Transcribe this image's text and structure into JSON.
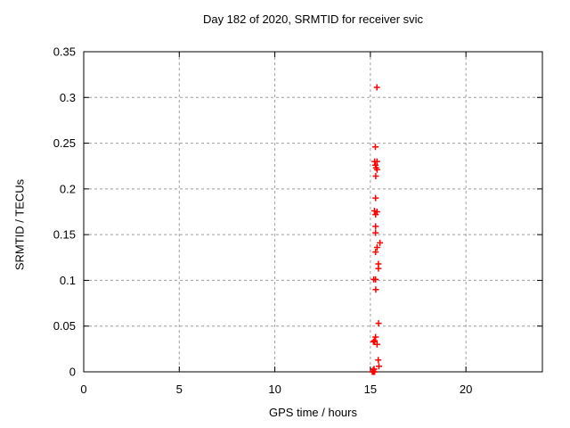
{
  "chart_data": {
    "type": "scatter",
    "title": "Day 182 of 2020, SRMTID for receiver svic",
    "xlabel": "GPS time / hours",
    "ylabel": "SRMTID / TECUs",
    "xlim": [
      0,
      24
    ],
    "ylim": [
      0,
      0.35
    ],
    "xticks": [
      {
        "value": 0,
        "label": "0"
      },
      {
        "value": 5,
        "label": "5"
      },
      {
        "value": 10,
        "label": "10"
      },
      {
        "value": 15,
        "label": "15"
      },
      {
        "value": 20,
        "label": "20"
      }
    ],
    "yticks": [
      {
        "value": 0,
        "label": "0"
      },
      {
        "value": 0.05,
        "label": "0.05"
      },
      {
        "value": 0.1,
        "label": "0.1"
      },
      {
        "value": 0.15,
        "label": "0.15"
      },
      {
        "value": 0.2,
        "label": "0.2"
      },
      {
        "value": 0.25,
        "label": "0.25"
      },
      {
        "value": 0.3,
        "label": "0.3"
      },
      {
        "value": 0.35,
        "label": "0.35"
      }
    ],
    "grid": true,
    "legend_position": "none",
    "colors": {
      "background": "#ffffff",
      "axis": "#000000",
      "grid": "#9e9e9e"
    },
    "series": [
      {
        "name": "srmtid-points",
        "marker": "plus",
        "color": "#ff0000",
        "points": [
          [
            15.34,
            0.311
          ],
          [
            15.26,
            0.246
          ],
          [
            15.22,
            0.23
          ],
          [
            15.35,
            0.23
          ],
          [
            15.26,
            0.226
          ],
          [
            15.3,
            0.223
          ],
          [
            15.35,
            0.221
          ],
          [
            15.28,
            0.214
          ],
          [
            15.27,
            0.19
          ],
          [
            15.21,
            0.176
          ],
          [
            15.35,
            0.175
          ],
          [
            15.27,
            0.172
          ],
          [
            15.27,
            0.159
          ],
          [
            15.27,
            0.152
          ],
          [
            15.5,
            0.141
          ],
          [
            15.35,
            0.136
          ],
          [
            15.27,
            0.131
          ],
          [
            15.42,
            0.118
          ],
          [
            15.42,
            0.113
          ],
          [
            15.18,
            0.101
          ],
          [
            15.27,
            0.101
          ],
          [
            15.28,
            0.09
          ],
          [
            15.43,
            0.053
          ],
          [
            15.27,
            0.038
          ],
          [
            15.22,
            0.034
          ],
          [
            15.16,
            0.033
          ],
          [
            15.35,
            0.03
          ],
          [
            15.41,
            0.013
          ],
          [
            15.45,
            0.006
          ],
          [
            15.15,
            0.002
          ],
          [
            15.19,
            0.003
          ],
          [
            15.1,
            0.0
          ],
          [
            15.14,
            0.0
          ],
          [
            15.18,
            0.0
          ],
          [
            15.22,
            0.0
          ]
        ]
      }
    ]
  }
}
